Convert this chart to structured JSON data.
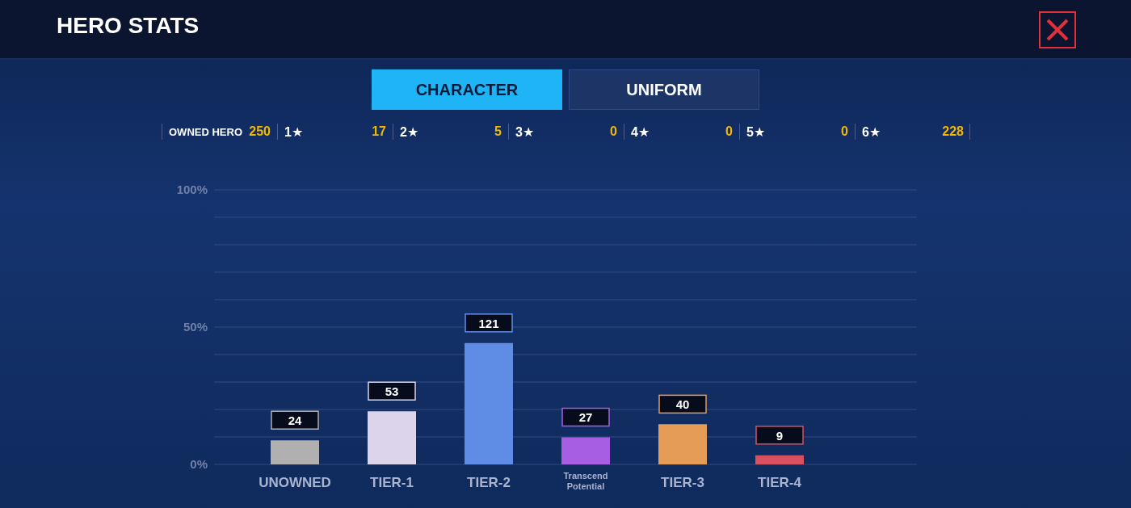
{
  "chart_data": {
    "type": "bar",
    "title": "HERO STATS",
    "annotations": [
      "CHARACTER",
      "UNIFORM",
      "OWNED HERO",
      "250",
      "1★",
      "17",
      "2★",
      "5",
      "3★",
      "0",
      "4★",
      "0",
      "5★",
      "0",
      "6★",
      "228"
    ],
    "categories": [
      "UNOWNED",
      "TIER-1",
      "TIER-2",
      "Transcend Potential",
      "TIER-3",
      "TIER-4"
    ],
    "values": [
      24,
      53,
      121,
      27,
      40,
      9
    ],
    "data_labels": true,
    "colors": [
      "#b0b0b0",
      "#dcd4ea",
      "#5f8de6",
      "#a75ee3",
      "#e49c56",
      "#d9505f"
    ],
    "ylim": [
      0,
      274
    ],
    "y2lim": [
      0,
      100
    ],
    "y2ticks": [
      {
        "value": 0,
        "label": "0%"
      },
      {
        "value": 10,
        "label": null
      },
      {
        "value": 20,
        "label": null
      },
      {
        "value": 30,
        "label": null
      },
      {
        "value": 40,
        "label": null
      },
      {
        "value": 50,
        "label": "50%"
      },
      {
        "value": 60,
        "label": null
      },
      {
        "value": 70,
        "label": null
      },
      {
        "value": 80,
        "label": null
      },
      {
        "value": 90,
        "label": null
      },
      {
        "value": 100,
        "label": "100%"
      }
    ],
    "grid": "y"
  }
}
